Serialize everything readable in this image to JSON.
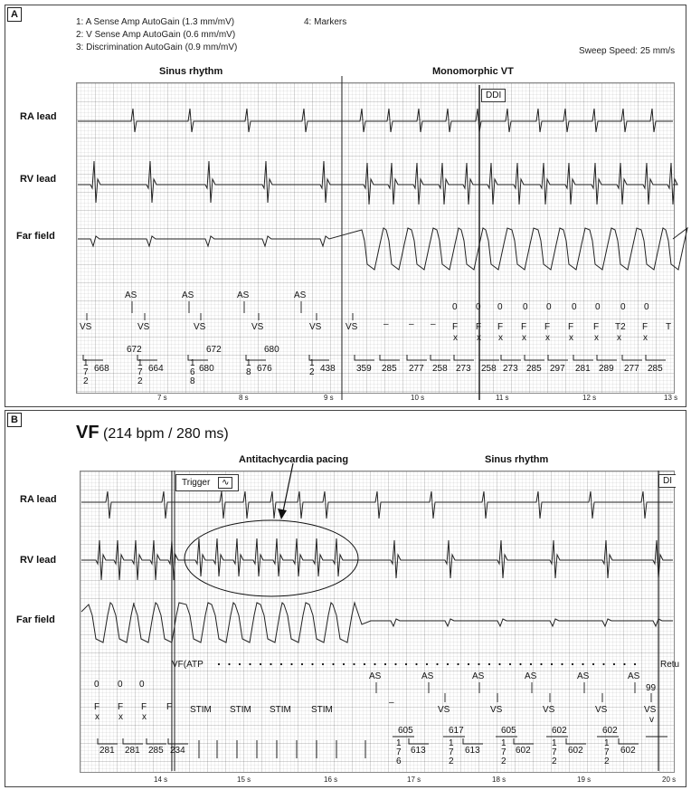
{
  "panelA": {
    "label": "A",
    "legend": [
      "1:  A Sense Amp   AutoGain (1.3 mm/mV)",
      "2:  V Sense Amp   AutoGain (0.6 mm/mV)",
      "3:  Discrimination   AutoGain (0.9 mm/mV)"
    ],
    "legend4": "4:  Markers",
    "sweep": "Sweep Speed: 25 mm/s",
    "section_left": "Sinus rhythm",
    "section_right": "Monomorphic VT",
    "mode_box": "DDI",
    "leads": [
      "RA lead",
      "RV lead",
      "Far field"
    ],
    "as_label": "AS",
    "vs_label": "VS",
    "vt_label": "F",
    "t2_label": "T2",
    "t_label": "T",
    "x_label": "x",
    "zero_label": "0",
    "dash": "–",
    "row_top": [
      "672",
      "672",
      "680"
    ],
    "intervals": [
      "668",
      "664",
      "680",
      "676",
      "438",
      "359",
      "285",
      "277",
      "258",
      "273",
      "258",
      "273",
      "285",
      "297",
      "281",
      "289",
      "277",
      "285"
    ],
    "stack": [
      "1",
      "7",
      "2",
      "1",
      "7",
      "2",
      "1",
      "6",
      "8",
      "1",
      "8",
      "1",
      "2"
    ],
    "ticks": [
      "7 s",
      "8 s",
      "9 s",
      "10 s",
      "11 s",
      "12 s",
      "13 s"
    ]
  },
  "panelB": {
    "label": "B",
    "title_bold": "VF",
    "title_rest": " (214 bpm / 280 ms)",
    "annotation": "Antitachycardia pacing",
    "section": "Sinus rhythm",
    "trigger": "Trigger",
    "corner_box": "DI",
    "leads": [
      "RA lead",
      "RV lead",
      "Far field"
    ],
    "vf_atp": "VF(ATP",
    "retu": "Retu",
    "as_label": "AS",
    "vs_label": "VS",
    "stim_label": "STIM",
    "f_label": "F",
    "x_label": "x",
    "zero_label": "0",
    "dash": "–",
    "v_label": "v",
    "top_numbers": [
      "605",
      "617",
      "605",
      "602",
      "602"
    ],
    "bottom_numbers": [
      "281",
      "281",
      "285",
      "234",
      "613",
      "613",
      "602",
      "602",
      "602"
    ],
    "stack": [
      "1",
      "7",
      "6",
      "1",
      "7",
      "2",
      "1",
      "7",
      "2",
      "1",
      "7",
      "2",
      "1",
      "7",
      "2"
    ],
    "mark_99": "99",
    "ticks": [
      "14 s",
      "15 s",
      "16 s",
      "17 s",
      "18 s",
      "19 s",
      "20 s"
    ]
  },
  "colors": {
    "trace": "#222222",
    "grid": "#bbbbbb",
    "border": "#444444"
  }
}
